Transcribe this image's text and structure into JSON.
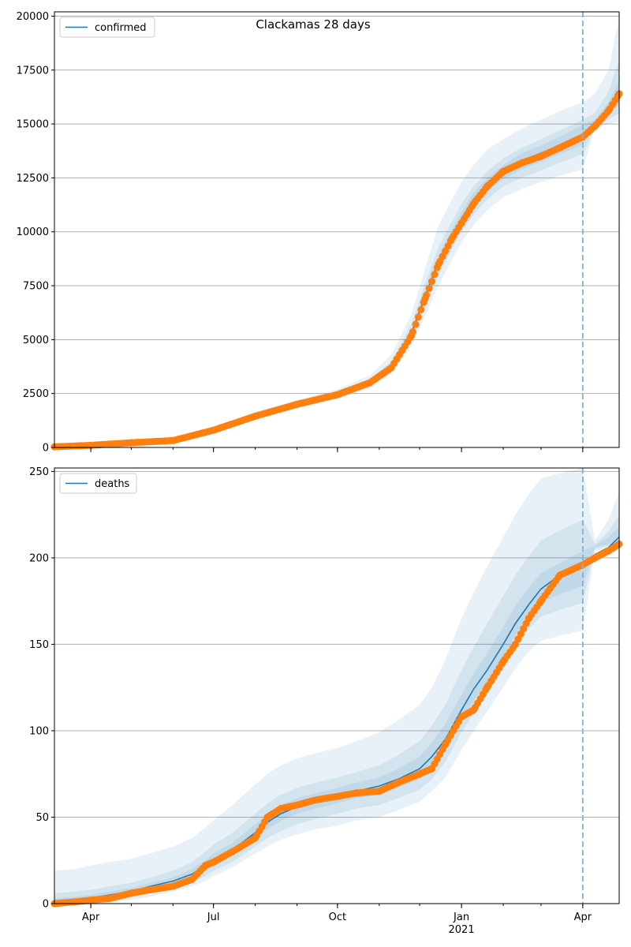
{
  "suptitle": "Clackamas 28 days",
  "colors": {
    "line": "#1f77b4",
    "points": "#ff7f0e",
    "band": "#c6dbef",
    "grid": "#b0b0b0",
    "vline": "#7fb1d3"
  },
  "x_axis": {
    "start": "2020-03-05",
    "end": "2021-04-28",
    "month_tick_labels": [
      {
        "date": "2020-04-01",
        "label": "Apr"
      },
      {
        "date": "2020-07-01",
        "label": "Jul"
      },
      {
        "date": "2020-10-01",
        "label": "Oct"
      },
      {
        "date": "2021-01-01",
        "label": "Jan"
      },
      {
        "date": "2021-04-01",
        "label": "Apr"
      }
    ],
    "year_label": "2021",
    "forecast_start_date": "2021-04-01"
  },
  "chart_data": [
    {
      "type": "line",
      "legend": "confirmed",
      "legend_position": "top-left",
      "grid": "horizontal",
      "ylim": [
        0,
        20200
      ],
      "yticks": [
        "0",
        "2500",
        "5000",
        "7500",
        "10000",
        "12500",
        "15000",
        "17500",
        "20000"
      ],
      "observed": {
        "x": [
          "2020-03-05",
          "2020-04-01",
          "2020-05-01",
          "2020-06-01",
          "2020-07-01",
          "2020-08-01",
          "2020-09-01",
          "2020-10-01",
          "2020-10-25",
          "2020-11-10",
          "2020-11-25",
          "2020-12-05",
          "2020-12-15",
          "2020-12-25",
          "2021-01-01",
          "2021-01-10",
          "2021-01-20",
          "2021-02-01",
          "2021-02-15",
          "2021-03-01",
          "2021-03-15",
          "2021-04-01",
          "2021-04-10",
          "2021-04-20",
          "2021-04-28"
        ],
        "y": [
          30,
          100,
          220,
          320,
          800,
          1450,
          2000,
          2450,
          3000,
          3700,
          5200,
          6900,
          8500,
          9700,
          10400,
          11300,
          12100,
          12800,
          13200,
          13500,
          13900,
          14400,
          14900,
          15600,
          16400
        ]
      },
      "fit": {
        "x": [
          "2020-03-05",
          "2020-04-01",
          "2020-05-01",
          "2020-06-01",
          "2020-07-01",
          "2020-08-01",
          "2020-09-01",
          "2020-10-01",
          "2020-10-25",
          "2020-11-10",
          "2020-11-25",
          "2020-12-05",
          "2020-12-15",
          "2020-12-25",
          "2021-01-01",
          "2021-01-10",
          "2021-01-20",
          "2021-02-01",
          "2021-02-15",
          "2021-03-01",
          "2021-03-15",
          "2021-04-01",
          "2021-04-10",
          "2021-04-20",
          "2021-04-28"
        ],
        "y": [
          30,
          100,
          220,
          320,
          800,
          1500,
          2000,
          2450,
          3000,
          3750,
          5300,
          7000,
          8600,
          9800,
          10600,
          11500,
          12200,
          12800,
          13300,
          13650,
          14000,
          14500,
          14900,
          15600,
          16300
        ],
        "bands": [
          {
            "lower": [
              20,
              80,
              190,
              280,
              720,
              1350,
              1820,
              2250,
              2750,
              3400,
              4700,
              6100,
              7500,
              8700,
              9500,
              10300,
              11000,
              11600,
              12000,
              12300,
              12600,
              12900,
              14800,
              15000,
              15100
            ],
            "upper": [
              50,
              130,
              260,
              380,
              900,
              1650,
              2200,
              2700,
              3350,
              4300,
              6200,
              8300,
              10300,
              11500,
              12300,
              13100,
              13800,
              14300,
              14800,
              15200,
              15600,
              16000,
              16400,
              17500,
              19900
            ]
          },
          {
            "lower": [
              25,
              90,
              200,
              300,
              760,
              1420,
              1900,
              2340,
              2860,
              3550,
              4950,
              6500,
              8000,
              9200,
              10000,
              10800,
              11500,
              12100,
              12500,
              12850,
              13200,
              13600,
              14850,
              15200,
              15500
            ],
            "upper": [
              40,
              115,
              240,
              350,
              850,
              1580,
              2100,
              2580,
              3150,
              4000,
              5750,
              7600,
              9300,
              10500,
              11300,
              12100,
              12800,
              13400,
              13900,
              14300,
              14700,
              15200,
              15500,
              16500,
              18000
            ]
          },
          {
            "lower": [
              28,
              95,
              210,
              310,
              780,
              1460,
              1950,
              2400,
              2930,
              3650,
              5100,
              6750,
              8300,
              9500,
              10300,
              11150,
              11850,
              12450,
              12900,
              13250,
              13600,
              14050,
              14880,
              15400,
              15900
            ],
            "upper": [
              35,
              108,
              230,
              335,
              825,
              1540,
              2050,
              2520,
              3080,
              3850,
              5500,
              7300,
              8900,
              10100,
              10900,
              11800,
              12500,
              13100,
              13650,
              14000,
              14400,
              14950,
              15200,
              16000,
              17000
            ]
          }
        ]
      }
    },
    {
      "type": "line",
      "legend": "deaths",
      "legend_position": "top-left",
      "grid": "horizontal",
      "ylim": [
        0,
        252
      ],
      "yticks": [
        "0",
        "50",
        "100",
        "150",
        "200",
        "250"
      ],
      "observed": {
        "x": [
          "2020-03-05",
          "2020-03-20",
          "2020-04-01",
          "2020-04-15",
          "2020-05-01",
          "2020-05-15",
          "2020-06-01",
          "2020-06-15",
          "2020-06-25",
          "2020-07-01",
          "2020-07-15",
          "2020-08-01",
          "2020-08-10",
          "2020-08-20",
          "2020-09-01",
          "2020-09-15",
          "2020-10-01",
          "2020-10-15",
          "2020-11-01",
          "2020-11-15",
          "2020-12-01",
          "2020-12-10",
          "2020-12-20",
          "2021-01-01",
          "2021-01-10",
          "2021-01-20",
          "2021-02-01",
          "2021-02-10",
          "2021-02-20",
          "2021-03-01",
          "2021-03-15",
          "2021-04-01",
          "2021-04-10",
          "2021-04-20",
          "2021-04-28"
        ],
        "y": [
          0,
          1,
          2,
          3,
          6,
          8,
          10,
          14,
          22,
          24,
          30,
          38,
          50,
          55,
          57,
          60,
          62,
          64,
          65,
          70,
          75,
          78,
          92,
          108,
          112,
          125,
          140,
          150,
          165,
          175,
          190,
          196,
          200,
          204,
          208
        ]
      },
      "fit": {
        "x": [
          "2020-03-05",
          "2020-03-20",
          "2020-04-01",
          "2020-04-15",
          "2020-05-01",
          "2020-05-15",
          "2020-06-01",
          "2020-06-15",
          "2020-06-25",
          "2020-07-01",
          "2020-07-15",
          "2020-08-01",
          "2020-08-10",
          "2020-08-20",
          "2020-09-01",
          "2020-09-15",
          "2020-10-01",
          "2020-10-15",
          "2020-11-01",
          "2020-11-15",
          "2020-12-01",
          "2020-12-10",
          "2020-12-20",
          "2021-01-01",
          "2021-01-10",
          "2021-01-20",
          "2021-02-01",
          "2021-02-10",
          "2021-02-20",
          "2021-03-01",
          "2021-03-15",
          "2021-04-01",
          "2021-04-10",
          "2021-04-20",
          "2021-04-28"
        ],
        "y": [
          1,
          2,
          3,
          5,
          7,
          10,
          13,
          17,
          22,
          25,
          31,
          41,
          47,
          52,
          56,
          59,
          62,
          65,
          68,
          72,
          78,
          85,
          95,
          112,
          124,
          135,
          150,
          162,
          173,
          182,
          190,
          196,
          202,
          206,
          212
        ],
        "bands": [
          {
            "lower": [
              0,
              0,
              0,
              1,
              2,
              4,
              7,
              10,
              13,
              16,
              21,
              29,
              33,
              37,
              40,
              43,
              45,
              48,
              50,
              54,
              59,
              65,
              73,
              89,
              100,
              111,
              125,
              136,
              146,
              152,
              155,
              158,
              204,
              205,
              206
            ],
            "upper": [
              19,
              20,
              22,
              24,
              26,
              29,
              33,
              38,
              44,
              48,
              57,
              69,
              75,
              80,
              84,
              87,
              90,
              94,
              99,
              106,
              115,
              125,
              141,
              165,
              180,
              195,
              212,
              225,
              237,
              246,
              249,
              252,
              210,
              222,
              238
            ]
          },
          {
            "lower": [
              0,
              0,
              1,
              2,
              4,
              6,
              9,
              12,
              16,
              19,
              24,
              33,
              38,
              42,
              46,
              49,
              52,
              55,
              57,
              61,
              66,
              72,
              82,
              99,
              110,
              121,
              136,
              148,
              159,
              166,
              170,
              174,
              205,
              207,
              208
            ],
            "upper": [
              6,
              7,
              8,
              10,
              12,
              15,
              19,
              24,
              30,
              34,
              41,
              52,
              58,
              63,
              67,
              70,
              73,
              76,
              80,
              86,
              94,
              103,
              115,
              135,
              148,
              162,
              178,
              190,
              201,
              210,
              216,
              222,
              208,
              215,
              225
            ]
          },
          {
            "lower": [
              0,
              1,
              2,
              3,
              5,
              8,
              11,
              14,
              19,
              22,
              28,
              37,
              43,
              48,
              52,
              55,
              58,
              61,
              63,
              67,
              72,
              79,
              89,
              105,
              117,
              128,
              143,
              155,
              166,
              174,
              179,
              184,
              206,
              208,
              210
            ],
            "upper": [
              3,
              4,
              5,
              7,
              9,
              12,
              15,
              20,
              25,
              29,
              35,
              46,
              52,
              57,
              61,
              64,
              67,
              70,
              73,
              78,
              85,
              93,
              104,
              121,
              133,
              145,
              160,
              172,
              183,
              191,
              197,
              204,
              207,
              212,
              218
            ]
          }
        ]
      }
    }
  ]
}
